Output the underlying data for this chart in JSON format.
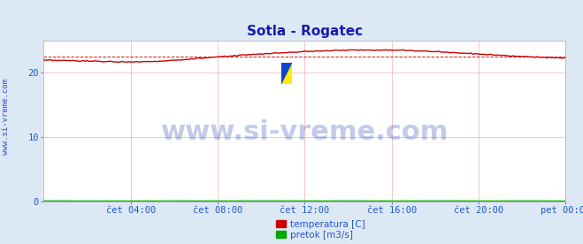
{
  "title": "Sotla - Rogatec",
  "title_color": "#1a1aaa",
  "title_fontsize": 11,
  "bg_color": "#dce9f5",
  "plot_bg_color": "#ffffff",
  "grid_color": "#f0b0b0",
  "axis_color": "#aaaaaa",
  "tick_color": "#2255cc",
  "tick_fontsize": 7.5,
  "xlim": [
    0,
    288
  ],
  "ylim": [
    0,
    25
  ],
  "yticks": [
    0,
    10,
    20
  ],
  "xtick_labels": [
    "čet 04:00",
    "čet 08:00",
    "čet 12:00",
    "čet 16:00",
    "čet 20:00",
    "pet 00:00"
  ],
  "xtick_positions": [
    48,
    96,
    144,
    192,
    240,
    288
  ],
  "watermark_text": "www.si-vreme.com",
  "watermark_color": "#1133aa",
  "watermark_fontsize": 22,
  "watermark_alpha": 0.25,
  "side_text": "www.si-vreme.com",
  "side_color": "#2255cc",
  "side_fontsize": 6.5,
  "legend_items": [
    {
      "label": "temperatura [C]",
      "color": "#cc0000"
    },
    {
      "label": "pretok [m3/s]",
      "color": "#00aa00"
    }
  ],
  "avg_line_color": "#cc0000",
  "avg_value": 22.4,
  "temp_color": "#cc0000",
  "temp_linewidth": 1.0,
  "pretok_color": "#00bb00",
  "pretok_linewidth": 1.0,
  "pretok_value": 0.05,
  "logo_yellow": "#ffee00",
  "logo_blue": "#1144cc"
}
